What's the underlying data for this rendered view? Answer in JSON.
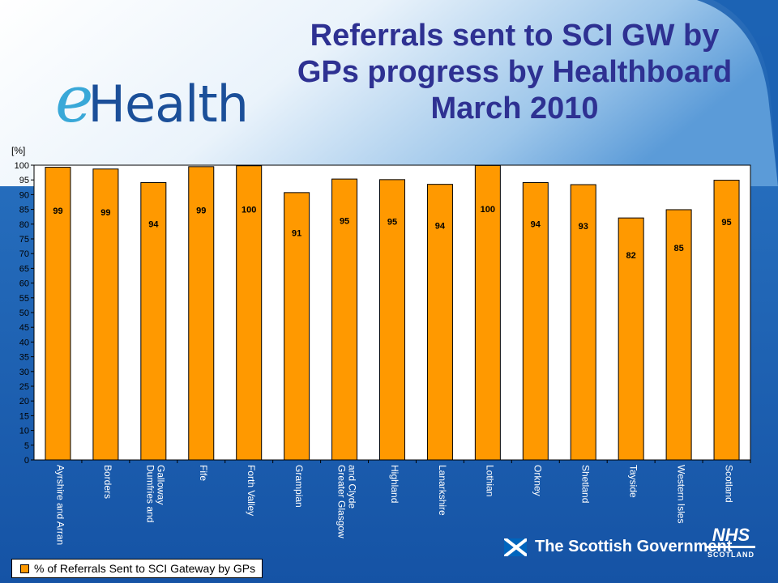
{
  "slide": {
    "title": "Referrals sent to SCI GW by\nGPs progress by Healthboard\nMarch 2010",
    "logo": {
      "prefix": "e",
      "text": "Health"
    },
    "footer": {
      "government": "The Scottish Government",
      "nhs": "NHS",
      "nhs_sub": "SCOTLAND"
    },
    "colors": {
      "bar": "#ff9900",
      "title": "#2e3192",
      "background": "#1d63b3",
      "logo_e": "#39a8d8",
      "logo_text": "#1b4f99"
    }
  },
  "chart_data": {
    "type": "bar",
    "title": "",
    "ylabel": "[%]",
    "xlabel": "",
    "ylim": [
      0,
      100
    ],
    "ystep": 5,
    "grid": false,
    "legend": "bottom-left",
    "categories": [
      "Ayrshire and Arran",
      "Borders",
      "Dumfries and Galloway",
      "Fife",
      "Forth Valley",
      "Grampian",
      "Greater Glasgow and Clyde",
      "Highland",
      "Lanarkshire",
      "Lothian",
      "Orkney",
      "Shetland",
      "Tayside",
      "Western Isles",
      "Scotland"
    ],
    "category_lines": [
      [
        "Ayrshire and Arran"
      ],
      [
        "Borders"
      ],
      [
        "Dumfries and",
        "Galloway"
      ],
      [
        "Fife"
      ],
      [
        "Forth Valley"
      ],
      [
        "Grampian"
      ],
      [
        "Greater Glasgow",
        "and Clyde"
      ],
      [
        "Highland"
      ],
      [
        "Lanarkshire"
      ],
      [
        "Lothian"
      ],
      [
        "Orkney"
      ],
      [
        "Shetland"
      ],
      [
        "Tayside"
      ],
      [
        "Western Isles"
      ],
      [
        "Scotland"
      ]
    ],
    "series": [
      {
        "name": "% of Referrals Sent to SCI Gateway by GPs",
        "values": [
          99.3,
          98.7,
          94.1,
          99.5,
          99.8,
          90.7,
          95.3,
          95.1,
          93.5,
          99.9,
          94.1,
          93.4,
          82.1,
          84.9,
          94.9
        ],
        "labels": [
          "99",
          "99",
          "94",
          "99",
          "100",
          "91",
          "95",
          "95",
          "94",
          "100",
          "94",
          "93",
          "82",
          "85",
          "95"
        ]
      }
    ]
  }
}
